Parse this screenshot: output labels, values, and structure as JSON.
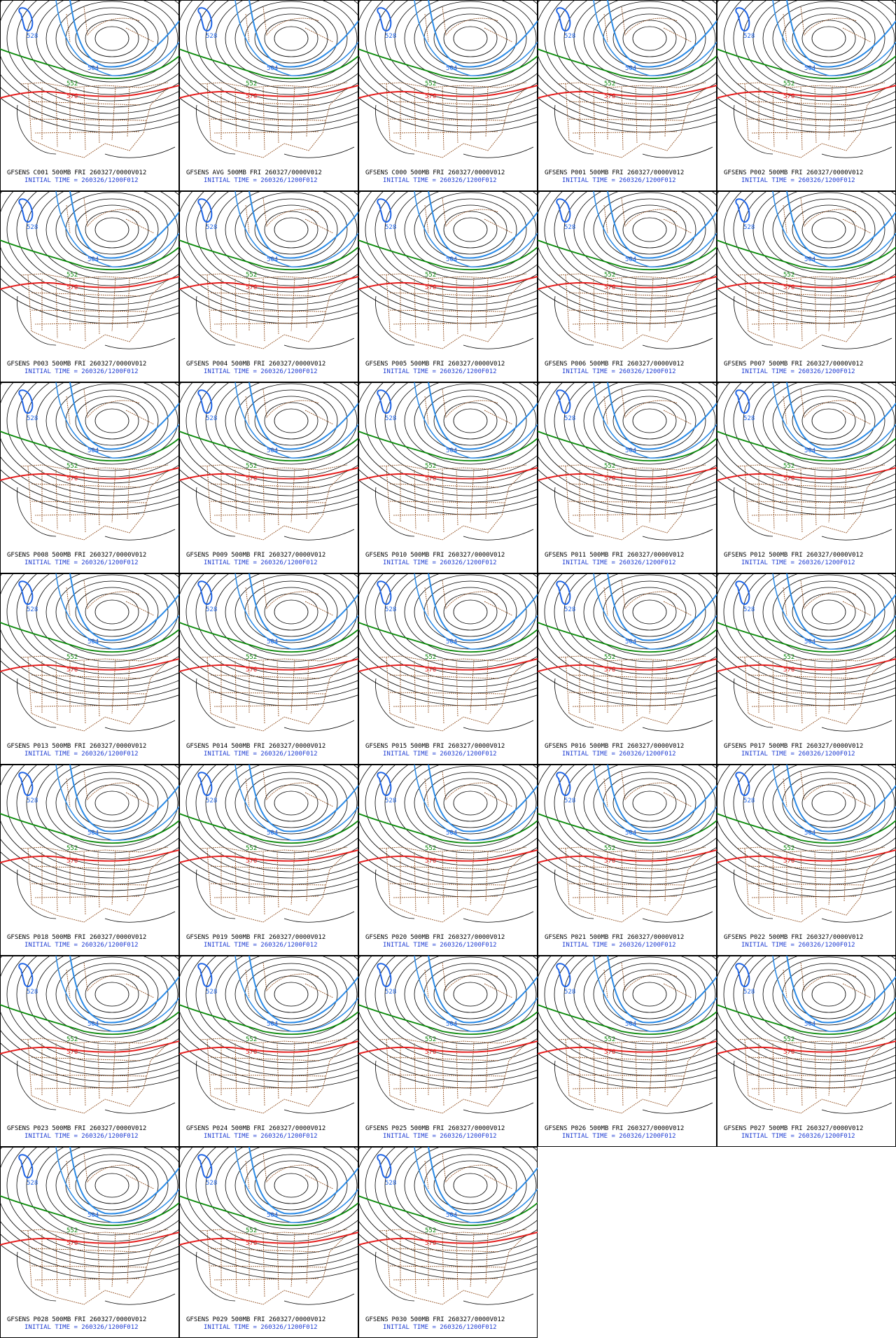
{
  "model": "GFSENS",
  "level": "500MB",
  "valid": "FRI 260327/0000V012",
  "init_label": "INITIAL TIME = 260326/1200F012",
  "contour_labels": [
    {
      "text": "528",
      "color": "#1e64e6"
    },
    {
      "text": "504",
      "color": "#1e64e6"
    },
    {
      "text": "552",
      "color": "#0a8a0a"
    },
    {
      "text": "576",
      "color": "#e61e1e"
    }
  ],
  "panels": [
    "C001",
    "AVG",
    "C000",
    "P001",
    "P002",
    "P003",
    "P004",
    "P005",
    "P006",
    "P007",
    "P008",
    "P009",
    "P010",
    "P011",
    "P012",
    "P013",
    "P014",
    "P015",
    "P016",
    "P017",
    "P018",
    "P019",
    "P020",
    "P021",
    "P022",
    "P023",
    "P024",
    "P025",
    "P026",
    "P027",
    "P028",
    "P029",
    "P030"
  ]
}
